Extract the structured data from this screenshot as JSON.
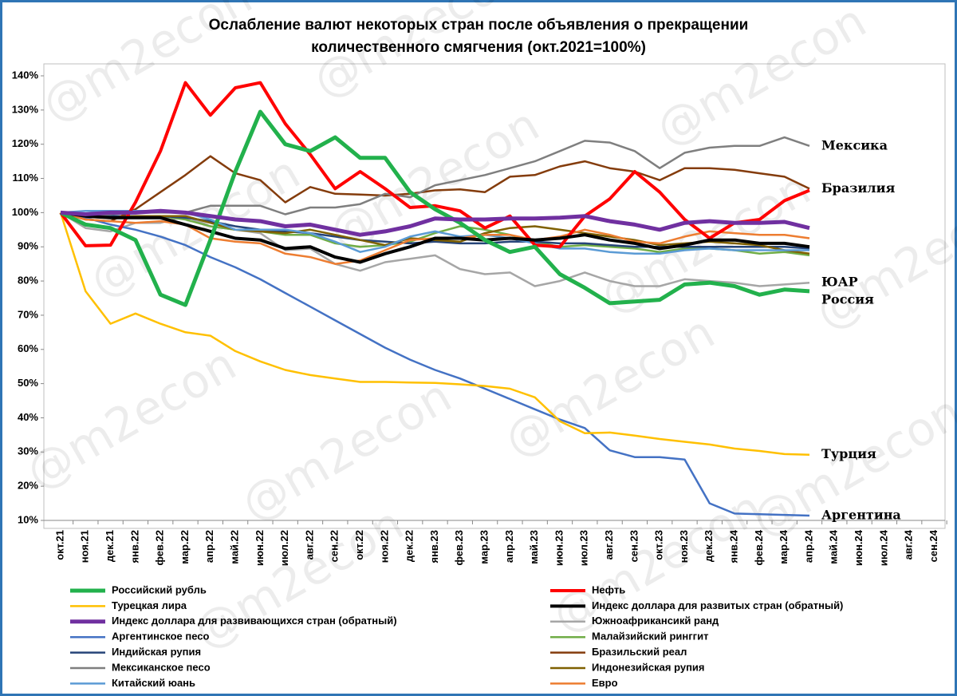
{
  "chart_data": {
    "type": "line",
    "title": [
      "Ослабление валют некоторых стран после объявления о прекращении",
      "количественного смягчения  (окт.2021=100%)"
    ],
    "watermark": "@m2econ",
    "categories": [
      "окт.21",
      "ноя.21",
      "дек.21",
      "янв.22",
      "фев.22",
      "мар.22",
      "апр.22",
      "май.22",
      "июн.22",
      "июл.22",
      "авг.22",
      "сен.22",
      "окт.22",
      "ноя.22",
      "дек.22",
      "янв.23",
      "фев.23",
      "мар.23",
      "апр.23",
      "май.23",
      "июн.23",
      "июл.23",
      "авг.23",
      "сен.23",
      "окт.23",
      "ноя.23",
      "дек.23",
      "янв.24",
      "фев.24",
      "мар.24",
      "апр.24",
      "май.24",
      "июн.24",
      "июл.24",
      "авг.24",
      "сен.24"
    ],
    "ylim": [
      10,
      140
    ],
    "yticks": [
      {
        "value": 10,
        "label": "10%"
      },
      {
        "value": 20,
        "label": "20%"
      },
      {
        "value": 30,
        "label": "30%"
      },
      {
        "value": 40,
        "label": "40%"
      },
      {
        "value": 50,
        "label": "50%"
      },
      {
        "value": 60,
        "label": "60%"
      },
      {
        "value": 70,
        "label": "70%"
      },
      {
        "value": 80,
        "label": "80%"
      },
      {
        "value": 90,
        "label": "90%"
      },
      {
        "value": 100,
        "label": "100%"
      },
      {
        "value": 110,
        "label": "110%"
      },
      {
        "value": 120,
        "label": "120%"
      },
      {
        "value": 130,
        "label": "130%"
      },
      {
        "value": 140,
        "label": "140%"
      }
    ],
    "grid": false,
    "series": [
      {
        "name": "Российский рубль",
        "color": "#22b14c",
        "values": [
          100,
          96.5,
          95.5,
          92,
          76,
          73,
          92,
          112,
          129.5,
          120,
          118,
          122,
          116,
          116,
          106,
          101,
          97,
          92,
          88.5,
          90,
          82,
          78,
          73.5,
          74,
          74.5,
          79,
          79.5,
          78.5,
          76,
          77.5,
          77,
          null,
          null,
          null,
          null,
          null
        ]
      },
      {
        "name": "Нефть",
        "color": "#ff0000",
        "values": [
          100,
          90.3,
          90.5,
          103,
          118,
          138,
          128.5,
          136.5,
          138,
          126,
          117,
          107,
          112,
          107,
          101.5,
          102,
          100.5,
          95.5,
          99,
          90.5,
          90,
          99,
          104,
          112,
          106,
          98,
          92.5,
          97,
          98,
          103.5,
          106.5,
          null,
          null,
          null,
          null,
          null
        ]
      },
      {
        "name": "Турецкая лира",
        "color": "#ffc000",
        "values": [
          100,
          77,
          67.5,
          70.5,
          67.5,
          65,
          64,
          59.5,
          56.5,
          54,
          52.5,
          51.5,
          50.5,
          50.5,
          50.3,
          50.2,
          49.8,
          49.3,
          48.5,
          46,
          39,
          35.5,
          35.7,
          34.8,
          33.8,
          33,
          32.2,
          31,
          30.3,
          29.4,
          29.2,
          null,
          null,
          null,
          null,
          null
        ]
      },
      {
        "name": "Индекс доллара для развитых стран (обратный)",
        "color": "#000000",
        "values": [
          100,
          99,
          98.5,
          98.5,
          98.5,
          96.5,
          94.5,
          92.5,
          92,
          89.5,
          90,
          87,
          85.5,
          88,
          90,
          92.5,
          92.5,
          92,
          92.5,
          92,
          92.5,
          93.5,
          92,
          91,
          89.5,
          90.5,
          92,
          92,
          91,
          91,
          90,
          null,
          null,
          null,
          null,
          null
        ]
      },
      {
        "name": "Индекс доллара для развивающихся стран (обратный)",
        "color": "#7030a0",
        "values": [
          100,
          99.5,
          100,
          100,
          100.5,
          100,
          99,
          98,
          97.5,
          96,
          96.5,
          95,
          93.5,
          94.5,
          96,
          98.3,
          98,
          98,
          98.3,
          98.3,
          98.5,
          99,
          97.5,
          96.5,
          95,
          97,
          97.5,
          97,
          97,
          97.3,
          95.5,
          null,
          null,
          null,
          null,
          null
        ]
      },
      {
        "name": "Южноафрикансикй ранд",
        "color": "#a6a6a6",
        "values": [
          100,
          95.5,
          94.5,
          97,
          97,
          99,
          96,
          95,
          94,
          89,
          89.5,
          85,
          83,
          85.5,
          86.5,
          87.5,
          83.5,
          82,
          82.5,
          78.5,
          80,
          82.5,
          80,
          78.5,
          78.5,
          80.5,
          80,
          79.5,
          78.5,
          79,
          79.5,
          null,
          null,
          null,
          null,
          null
        ]
      },
      {
        "name": "Аргентинское песо",
        "color": "#4472c4",
        "values": [
          100,
          98.5,
          96.5,
          95,
          93,
          90.5,
          87,
          84,
          80.5,
          76.5,
          72.5,
          68.5,
          64.5,
          60.5,
          57,
          54,
          51.5,
          48.5,
          45.5,
          42.5,
          39.5,
          37,
          30.5,
          28.5,
          28.5,
          27.8,
          15,
          12,
          11.8,
          11.6,
          11.4,
          null,
          null,
          null,
          null,
          null
        ]
      },
      {
        "name": "Малайзийский ринггит",
        "color": "#70ad47",
        "values": [
          100,
          99,
          98.5,
          98.5,
          99,
          98,
          96,
          95,
          94.5,
          93.5,
          93.5,
          91,
          90,
          90.5,
          91.5,
          94,
          96,
          95,
          93.5,
          91.5,
          90,
          90.5,
          90,
          89.5,
          88.5,
          89.5,
          89.5,
          89,
          88,
          88.5,
          87.5,
          null,
          null,
          null,
          null,
          null
        ]
      },
      {
        "name": "Индийская рупия",
        "color": "#264478",
        "values": [
          100,
          99.5,
          99,
          99,
          99,
          98.5,
          97.5,
          96,
          95,
          94.5,
          94,
          93,
          92,
          91.5,
          91,
          91.5,
          91,
          91,
          91.5,
          91.5,
          91,
          91,
          90.5,
          90,
          90,
          90,
          90,
          90,
          90,
          90,
          89.5,
          null,
          null,
          null,
          null,
          null
        ]
      },
      {
        "name": "Бразильский реал",
        "color": "#843c0c",
        "values": [
          100,
          98,
          97.5,
          101,
          106,
          111,
          116.5,
          111.5,
          109.5,
          103,
          107.5,
          105.5,
          105.3,
          105,
          105.5,
          106.5,
          106.8,
          106,
          110.5,
          111,
          113.5,
          115,
          113,
          112,
          109.5,
          113,
          113,
          112.5,
          111.5,
          110.5,
          107,
          null,
          null,
          null,
          null,
          null
        ]
      },
      {
        "name": "Мексиканское песо",
        "color": "#7f7f7f",
        "values": [
          100,
          99,
          99.5,
          100,
          100,
          100,
          102,
          102,
          102,
          99.5,
          101.5,
          101.5,
          102.5,
          105.5,
          104.5,
          108,
          109.5,
          111,
          113,
          115,
          118,
          121,
          120.5,
          118,
          113,
          117.5,
          119,
          119.5,
          119.5,
          122,
          119.5,
          null,
          null,
          null,
          null,
          null
        ]
      },
      {
        "name": "Индонезийская рупия",
        "color": "#7f6000",
        "values": [
          100,
          99,
          98.5,
          99,
          99,
          99,
          97,
          95,
          94.5,
          94,
          95,
          93.5,
          92,
          90.5,
          92.5,
          92,
          91.5,
          94,
          95.5,
          96,
          95,
          94,
          93,
          92,
          90.5,
          91,
          91.5,
          91,
          90.5,
          89,
          88,
          null,
          null,
          null,
          null,
          null
        ]
      },
      {
        "name": "Китайский юань",
        "color": "#5b9bd5",
        "values": [
          100,
          100.5,
          100.5,
          100.5,
          100.5,
          100,
          98,
          95,
          95,
          95,
          94,
          91.5,
          88.5,
          90,
          93,
          94.5,
          93,
          93.5,
          92.5,
          91,
          89.5,
          89.5,
          88.5,
          88,
          88,
          89,
          89.5,
          89,
          89,
          89,
          89,
          null,
          null,
          null,
          null,
          null
        ]
      },
      {
        "name": "Евро",
        "color": "#ed7d31",
        "values": [
          100,
          98,
          97.5,
          97,
          97.5,
          96.5,
          92.5,
          91.5,
          91,
          88,
          87,
          85,
          86,
          89,
          92,
          92.5,
          92.5,
          93.5,
          93.5,
          92,
          93,
          95,
          93.5,
          91.5,
          91,
          93,
          94.5,
          94,
          93.5,
          93.5,
          92.5,
          null,
          null,
          null,
          null,
          null
        ]
      }
    ],
    "annotations": [
      {
        "text": "Мексика",
        "series": "Мексиканское песо"
      },
      {
        "text": "Бразилия",
        "series": "Бразильский реал"
      },
      {
        "text": "ЮАР",
        "series": "Южноафрикансикй ранд"
      },
      {
        "text": "Россия",
        "series": "Российский рубль"
      },
      {
        "text": "Турция",
        "series": "Турецкая лира"
      },
      {
        "text": "Аргентина",
        "series": "Аргентинское песо"
      }
    ]
  }
}
